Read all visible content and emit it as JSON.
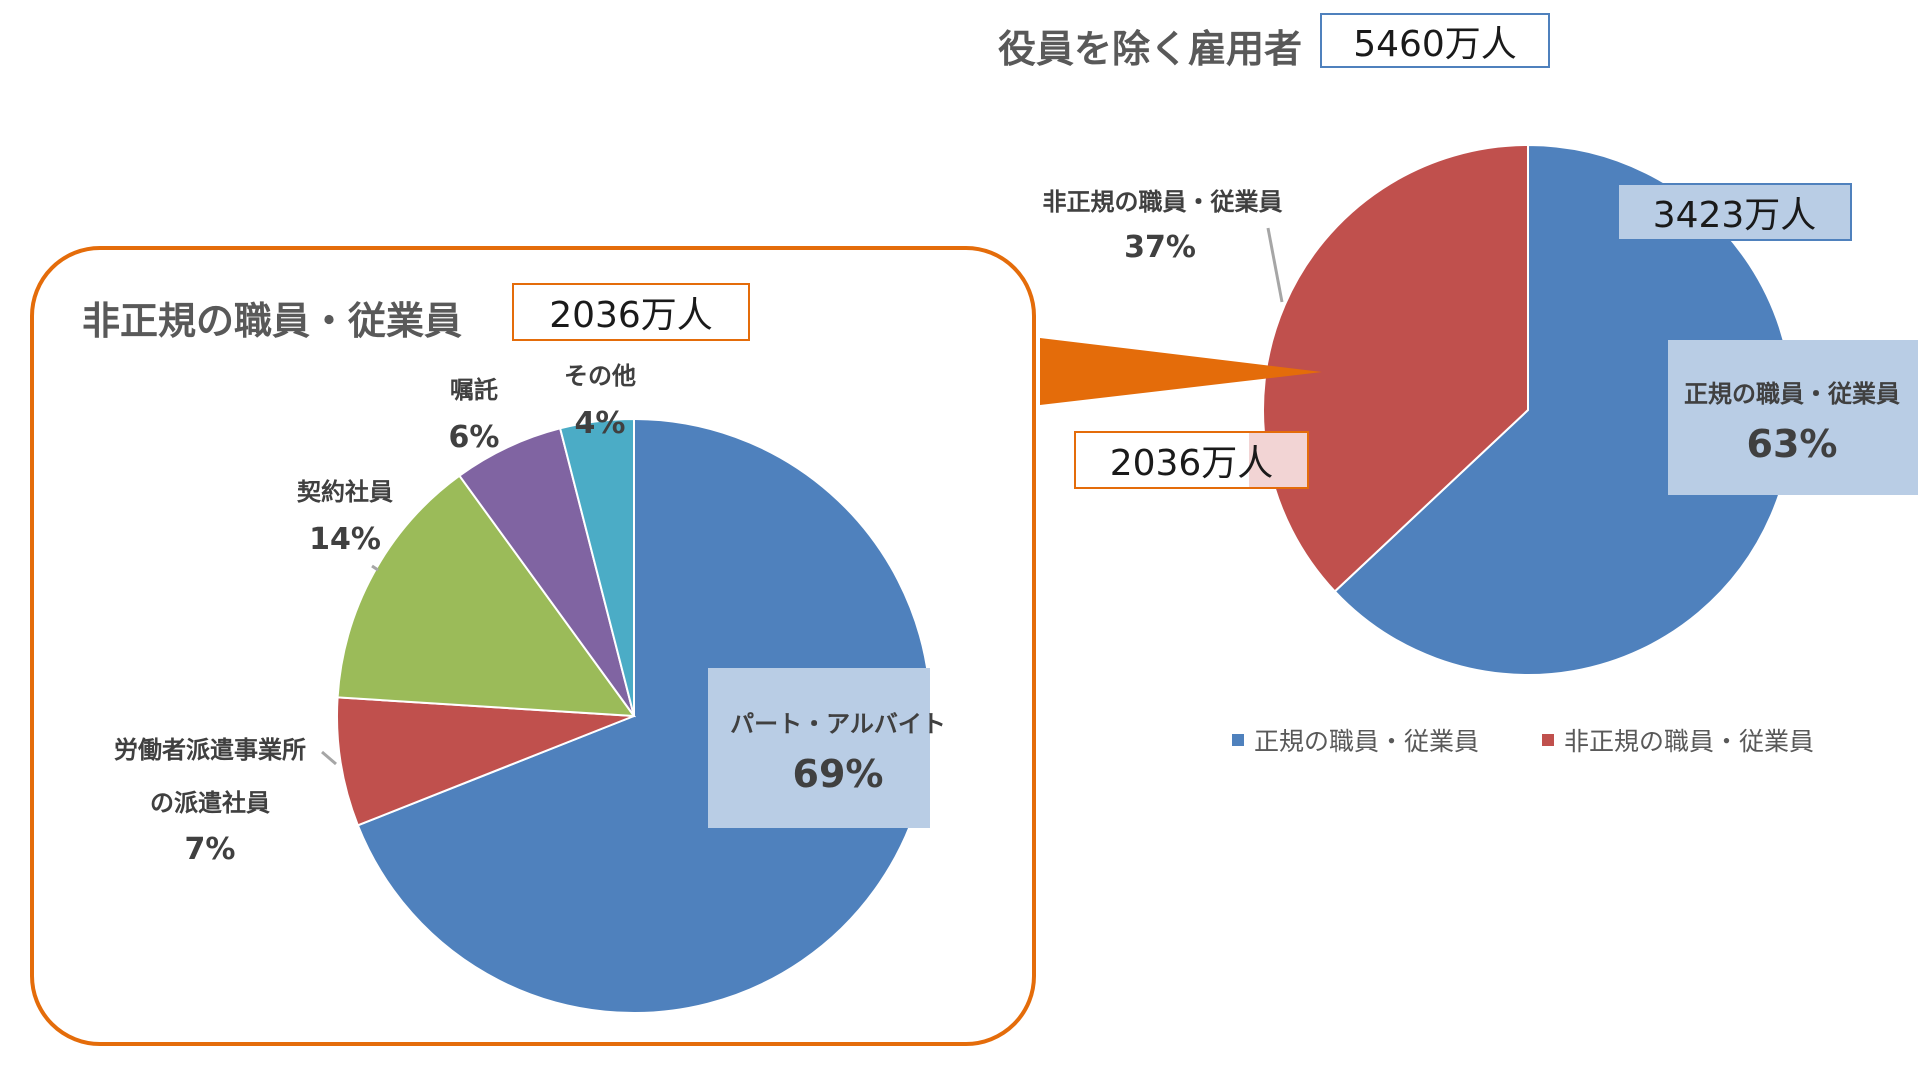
{
  "chart_data": [
    {
      "type": "pie",
      "title": "役員を除く雇用者",
      "total_label": "5460万人",
      "slices": [
        {
          "label": "正規の職員・従業員",
          "value": 63,
          "value_label": "63%",
          "count_label": "3423万人",
          "color": "#4f81bd"
        },
        {
          "label": "非正規の職員・従業員",
          "value": 37,
          "value_label": "37%",
          "count_label": "2036万人",
          "color": "#c0504d"
        }
      ],
      "legend": [
        "正規の職員・従業員",
        "非正規の職員・従業員"
      ]
    },
    {
      "type": "pie",
      "title": "非正規の職員・従業員",
      "total_label": "2036万人",
      "slices": [
        {
          "label": "パート・アルバイト",
          "value": 69,
          "value_label": "69%",
          "color": "#4f81bd"
        },
        {
          "label_line1": "労働者派遣事業所",
          "label_line2": "の派遣社員",
          "value": 7,
          "value_label": "7%",
          "color": "#c0504d"
        },
        {
          "label": "契約社員",
          "value": 14,
          "value_label": "14%",
          "color": "#9bbb59"
        },
        {
          "label": "嘱託",
          "value": 6,
          "value_label": "6%",
          "color": "#8064a2"
        },
        {
          "label": "その他",
          "value": 4,
          "value_label": "4%",
          "color": "#4bacc6"
        }
      ]
    }
  ],
  "colors": {
    "accent_orange": "#e46c0a",
    "label_highlight": "#b9cde5",
    "label_pink": "#f2d4d4"
  }
}
